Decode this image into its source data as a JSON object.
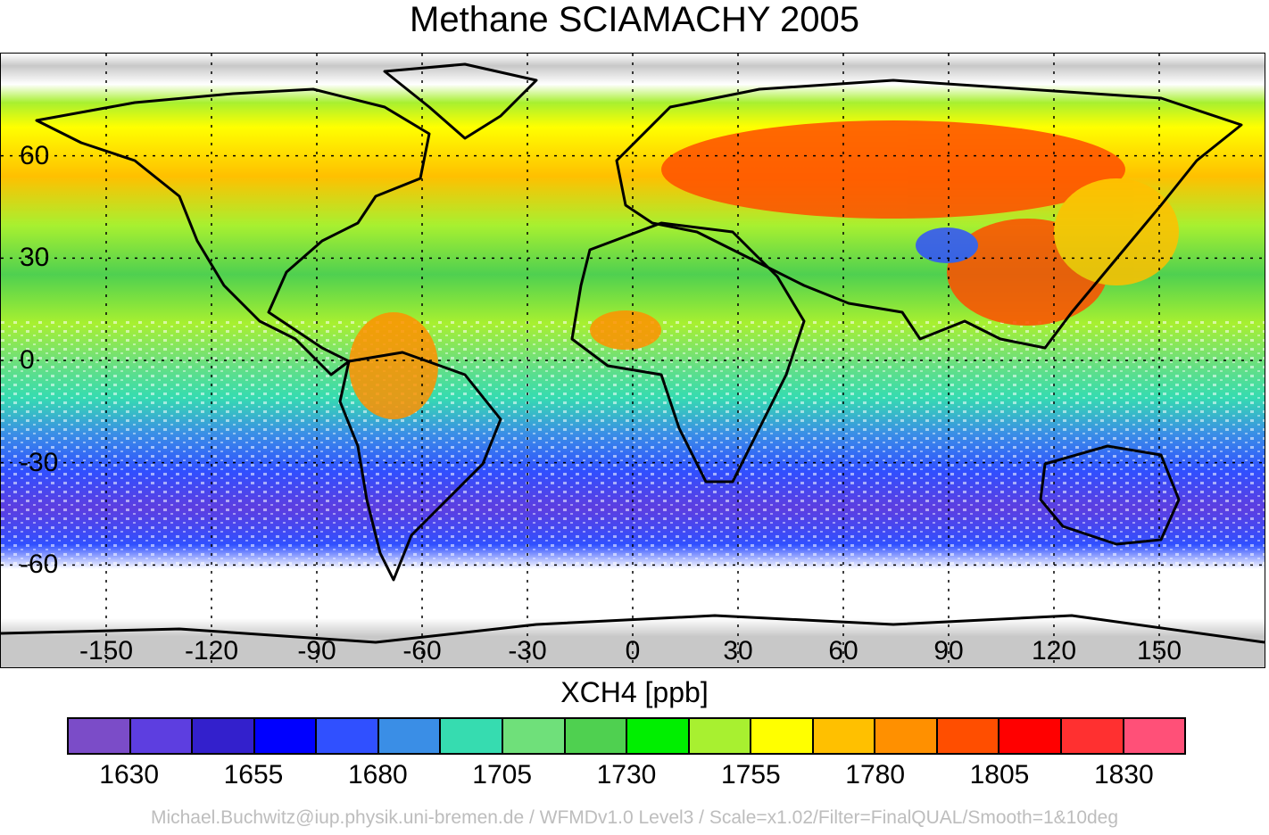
{
  "title": "Methane SCIAMACHY 2005",
  "map": {
    "projection": "equirectangular",
    "lon_range": [
      -180,
      180
    ],
    "lat_range": [
      -90,
      90
    ],
    "grid": "dotted",
    "lat_ticks": [
      "60",
      "30",
      "0",
      "-30",
      "-60"
    ],
    "lon_ticks": [
      "-150",
      "-120",
      "-90",
      "-60",
      "-30",
      "0",
      "30",
      "60",
      "90",
      "120",
      "150"
    ],
    "lat_tick_values": [
      60,
      30,
      0,
      -30,
      -60
    ],
    "lon_tick_values": [
      -150,
      -120,
      -90,
      -60,
      -30,
      0,
      30,
      60,
      90,
      120,
      150
    ],
    "land_outline_color": "#000000",
    "no_data_color": "#ffffff",
    "polar_ice_color": "#c8c8c8"
  },
  "colorbar": {
    "title": "XCH4 [ppb]",
    "tick_labels": [
      "1630",
      "1655",
      "1680",
      "1705",
      "1730",
      "1755",
      "1780",
      "1805",
      "1830"
    ],
    "colors": [
      "#7b4cc8",
      "#5d3ee0",
      "#3320cc",
      "#0000ff",
      "#3050ff",
      "#3a8ee6",
      "#36dcb0",
      "#6fe07a",
      "#4fd050",
      "#00ef00",
      "#a8f030",
      "#ffff00",
      "#ffc000",
      "#ff9000",
      "#ff4e00",
      "#ff0000",
      "#ff3030",
      "#ff5078"
    ]
  },
  "footer": "Michael.Buchwitz@iup.physik.uni-bremen.de / WFMDv1.0 Level3 / Scale=x1.02/Filter=FinalQUAL/Smooth=1&10deg"
}
